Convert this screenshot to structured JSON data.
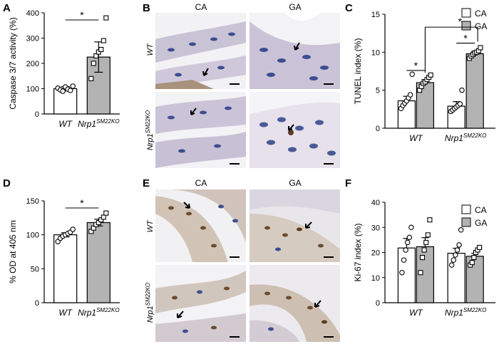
{
  "colors": {
    "gray_bar": "#b3b3b3",
    "white_bar": "#ffffff",
    "ink": "#000000",
    "stain_ihc": "#c8c2d4",
    "stain_ki": "#d7cfc6"
  },
  "panel_a": {
    "letter": "A",
    "chart_data": {
      "type": "bar",
      "ylabel": "Caspase 3/7 activity (%)",
      "ylim": [
        0,
        400
      ],
      "yticks": [
        "0",
        "100",
        "200",
        "300",
        "400"
      ],
      "categories": [
        {
          "main": "WT",
          "sup": ""
        },
        {
          "main": "Nrp1",
          "sup": "SM22KO"
        }
      ],
      "values": [
        100,
        225
      ],
      "errors": [
        8,
        60
      ],
      "points": [
        [
          102,
          95,
          90,
          107,
          98,
          93,
          110
        ],
        [
          140,
          200,
          230,
          245,
          255,
          290,
          380
        ]
      ],
      "significance": [
        "*"
      ]
    }
  },
  "panel_b": {
    "letter": "B",
    "col_headers": [
      "CA",
      "GA"
    ],
    "row_labels": [
      {
        "main": "WT",
        "sup": ""
      },
      {
        "main": "Nrp1",
        "sup": "SM22KO"
      }
    ]
  },
  "panel_c": {
    "letter": "C",
    "chart_data": {
      "type": "bar",
      "ylabel": "TUNEL index (%)",
      "ylim": [
        0,
        15
      ],
      "yticks": [
        "0",
        "5",
        "10",
        "15"
      ],
      "categories": [
        {
          "main": "WT",
          "sup": ""
        },
        {
          "main": "Nrp1",
          "sup": "SM22KO"
        }
      ],
      "series": [
        {
          "name": "CA",
          "values": [
            3.6,
            2.9
          ],
          "errors": [
            0.6,
            0.6
          ],
          "points": [
            [
              2.6,
              3.0,
              3.3,
              3.6,
              4.0,
              4.4,
              7.1
            ],
            [
              2.2,
              2.4,
              2.6,
              2.8,
              3.0,
              3.2,
              5.0
            ]
          ]
        },
        {
          "name": "GA",
          "values": [
            6.0,
            9.8
          ],
          "errors": [
            0.4,
            0.3
          ],
          "points": [
            [
              5.0,
              5.5,
              5.9,
              6.1,
              6.4,
              6.7,
              7.0
            ],
            [
              9.2,
              9.5,
              9.7,
              9.9,
              10.0,
              10.2,
              10.6
            ]
          ]
        }
      ],
      "legend": "top-right",
      "significance": [
        "*",
        "*",
        "*"
      ]
    }
  },
  "panel_d": {
    "letter": "D",
    "chart_data": {
      "type": "bar",
      "ylabel": "% OD at 405 nm",
      "ylim": [
        0,
        150
      ],
      "yticks": [
        "0",
        "50",
        "100",
        "150"
      ],
      "categories": [
        {
          "main": "WT",
          "sup": ""
        },
        {
          "main": "Nrp1",
          "sup": "SM22KO"
        }
      ],
      "values": [
        100,
        118
      ],
      "errors": [
        3,
        5
      ],
      "points": [
        [
          90,
          95,
          98,
          100,
          102,
          104,
          108
        ],
        [
          105,
          110,
          115,
          118,
          122,
          126,
          132
        ]
      ],
      "significance": [
        "*"
      ]
    }
  },
  "panel_e": {
    "letter": "E",
    "col_headers": [
      "CA",
      "GA"
    ],
    "row_labels": [
      {
        "main": "WT",
        "sup": ""
      },
      {
        "main": "Nrp1",
        "sup": "SM22KO"
      }
    ]
  },
  "panel_f": {
    "letter": "F",
    "chart_data": {
      "type": "bar",
      "ylabel": "Ki-67 index (%)",
      "ylim": [
        0,
        40
      ],
      "yticks": [
        "0",
        "10",
        "20",
        "30",
        "40"
      ],
      "categories": [
        {
          "main": "WT",
          "sup": ""
        },
        {
          "main": "Nrp1",
          "sup": "SM22KO"
        }
      ],
      "series": [
        {
          "name": "CA",
          "values": [
            21.8,
            19.7
          ],
          "errors": [
            3.8,
            2.0
          ],
          "points": [
            [
              12,
              17,
              21,
              24,
              26,
              30
            ],
            [
              15,
              17,
              19,
              21,
              23,
              29
            ]
          ]
        },
        {
          "name": "GA",
          "values": [
            22.3,
            18.5
          ],
          "errors": [
            3.6,
            1.2
          ],
          "points": [
            [
              12,
              18,
              21,
              24,
              27,
              33
            ],
            [
              15,
              16,
              18,
              20,
              21,
              22
            ]
          ]
        }
      ],
      "legend": "top-right"
    }
  }
}
